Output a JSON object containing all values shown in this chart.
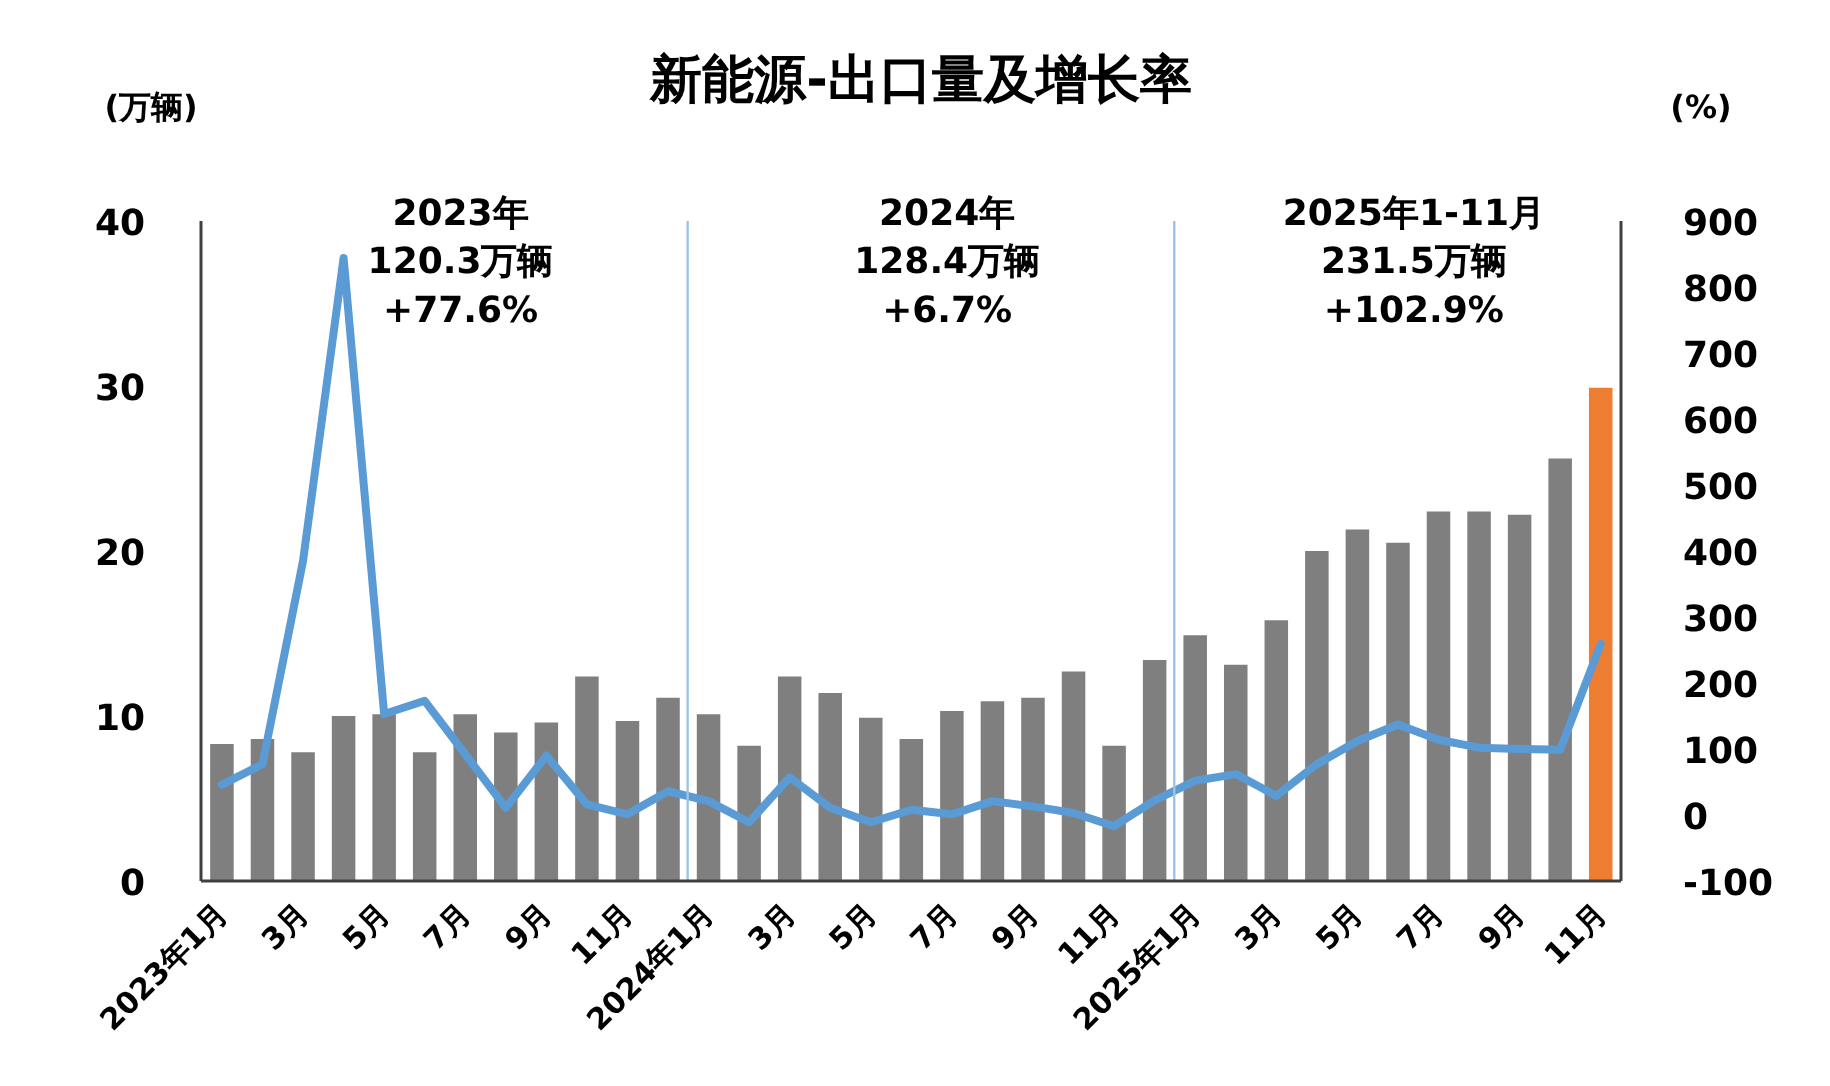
{
  "chart_data": {
    "type": "bar",
    "title": "新能源-出口量及增长率",
    "ylabel": "(万辆)",
    "y2label": "(%)",
    "x": [
      "2023-01",
      "2023-02",
      "2023-03",
      "2023-04",
      "2023-05",
      "2023-06",
      "2023-07",
      "2023-08",
      "2023-09",
      "2023-10",
      "2023-11",
      "2023-12",
      "2024-01",
      "2024-02",
      "2024-03",
      "2024-04",
      "2024-05",
      "2024-06",
      "2024-07",
      "2024-08",
      "2024-09",
      "2024-10",
      "2024-11",
      "2024-12",
      "2025-01",
      "2025-02",
      "2025-03",
      "2025-04",
      "2025-05",
      "2025-06",
      "2025-07",
      "2025-08",
      "2025-09",
      "2025-10",
      "2025-11"
    ],
    "xlim": [
      "2022-12-16",
      "2025-11-16"
    ],
    "xticks": [
      {
        "value": "2023-01",
        "label": "2023年1月"
      },
      {
        "value": "2023-03",
        "label": "3月"
      },
      {
        "value": "2023-05",
        "label": "5月"
      },
      {
        "value": "2023-07",
        "label": "7月"
      },
      {
        "value": "2023-09",
        "label": "9月"
      },
      {
        "value": "2023-11",
        "label": "11月"
      },
      {
        "value": "2024-01",
        "label": "2024年1月"
      },
      {
        "value": "2024-03",
        "label": "3月"
      },
      {
        "value": "2024-05",
        "label": "5月"
      },
      {
        "value": "2024-07",
        "label": "7月"
      },
      {
        "value": "2024-09",
        "label": "9月"
      },
      {
        "value": "2024-11",
        "label": "11月"
      },
      {
        "value": "2025-01",
        "label": "2025年1月"
      },
      {
        "value": "2025-03",
        "label": "3月"
      },
      {
        "value": "2025-05",
        "label": "5月"
      },
      {
        "value": "2025-07",
        "label": "7月"
      },
      {
        "value": "2025-09",
        "label": "9月"
      },
      {
        "value": "2025-11",
        "label": "11月"
      }
    ],
    "ylim": [
      0,
      40
    ],
    "yticks": [
      0,
      10,
      20,
      30,
      40
    ],
    "y2lim": [
      -100,
      900
    ],
    "y2ticks": [
      -100,
      0,
      100,
      200,
      300,
      400,
      500,
      600,
      700,
      800,
      900
    ],
    "series": [
      {
        "colors": [
          "#7f7f7f",
          "#7f7f7f",
          "#7f7f7f",
          "#7f7f7f",
          "#7f7f7f",
          "#7f7f7f",
          "#7f7f7f",
          "#7f7f7f",
          "#7f7f7f",
          "#7f7f7f",
          "#7f7f7f",
          "#7f7f7f",
          "#7f7f7f",
          "#7f7f7f",
          "#7f7f7f",
          "#7f7f7f",
          "#7f7f7f",
          "#7f7f7f",
          "#7f7f7f",
          "#7f7f7f",
          "#7f7f7f",
          "#7f7f7f",
          "#7f7f7f",
          "#7f7f7f",
          "#7f7f7f",
          "#7f7f7f",
          "#7f7f7f",
          "#7f7f7f",
          "#7f7f7f",
          "#7f7f7f",
          "#7f7f7f",
          "#7f7f7f",
          "#7f7f7f",
          "#7f7f7f",
          "#ed7d31"
        ],
        "values": [
          8.3,
          8.6,
          7.8,
          10.0,
          10.1,
          7.8,
          10.1,
          9.0,
          9.6,
          12.4,
          9.7,
          11.1,
          10.1,
          8.2,
          12.4,
          11.4,
          9.9,
          8.6,
          10.3,
          10.9,
          11.1,
          12.7,
          8.2,
          13.4,
          14.9,
          13.1,
          15.8,
          20.0,
          21.3,
          20.5,
          22.4,
          22.4,
          22.2,
          25.6,
          29.9
        ]
      },
      {
        "type": "line",
        "axis": "y2",
        "color": "#5b9bd5",
        "values": [
          46,
          77,
          385,
          844,
          153,
          173,
          92,
          11,
          90,
          16,
          1,
          36,
          21,
          -11,
          57,
          11,
          -11,
          8,
          1,
          21,
          13,
          3,
          -17,
          22,
          52,
          62,
          29,
          77,
          112,
          137,
          114,
          102,
          100,
          99,
          259
        ]
      }
    ],
    "ref_lines": [
      {
        "axis": "x",
        "value": "2023-12-16",
        "color": "#9dc3e6"
      },
      {
        "axis": "x",
        "value": "2024-12-16",
        "color": "#9dc3e6"
      }
    ],
    "annotations": [
      "2023年\n120.3万辆\n+77.6%",
      "2024年\n128.4万辆\n+6.7%",
      "2025年1-11月\n231.5万辆\n+102.9%"
    ],
    "grid": false
  }
}
